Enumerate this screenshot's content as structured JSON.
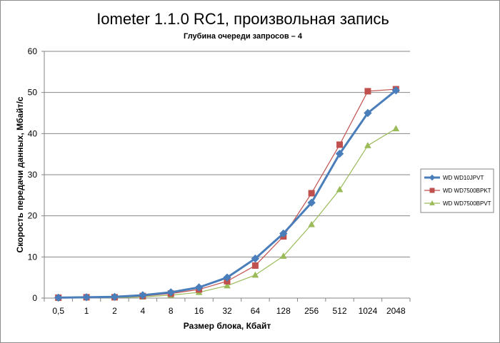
{
  "chart_data": {
    "type": "line",
    "title": "Iometer 1.1.0 RC1, произвольная запись",
    "subtitle": "Глубина очереди запросов – 4",
    "xlabel": "Размер блока, Кбайт",
    "ylabel": "Скорость передачи данных, Мбайт/с",
    "categories": [
      "0,5",
      "1",
      "2",
      "4",
      "8",
      "16",
      "32",
      "64",
      "128",
      "256",
      "512",
      "1024",
      "2048"
    ],
    "ylim": [
      0,
      60
    ],
    "yticks": [
      "0",
      "10",
      "20",
      "30",
      "40",
      "50",
      "60"
    ],
    "grid": true,
    "legend_position": "right",
    "series": [
      {
        "name": "WD WD10JPVT",
        "color": "#4a7ebb",
        "marker": "diamond",
        "values": [
          0.1,
          0.2,
          0.3,
          0.7,
          1.4,
          2.6,
          5.0,
          9.6,
          15.7,
          23.2,
          35.1,
          45.0,
          50.5
        ]
      },
      {
        "name": "WD WD7500BPKT",
        "color": "#c0504d",
        "marker": "square",
        "values": [
          0.1,
          0.2,
          0.2,
          0.5,
          1.1,
          2.1,
          4.1,
          7.9,
          15.0,
          25.5,
          37.3,
          50.3,
          50.8
        ]
      },
      {
        "name": "WD WD7500BPVT",
        "color": "#9bbb59",
        "marker": "triangle",
        "values": [
          0.0,
          0.1,
          0.1,
          0.3,
          0.7,
          1.4,
          3.0,
          5.6,
          10.2,
          17.9,
          26.4,
          37.1,
          41.2
        ]
      }
    ]
  }
}
